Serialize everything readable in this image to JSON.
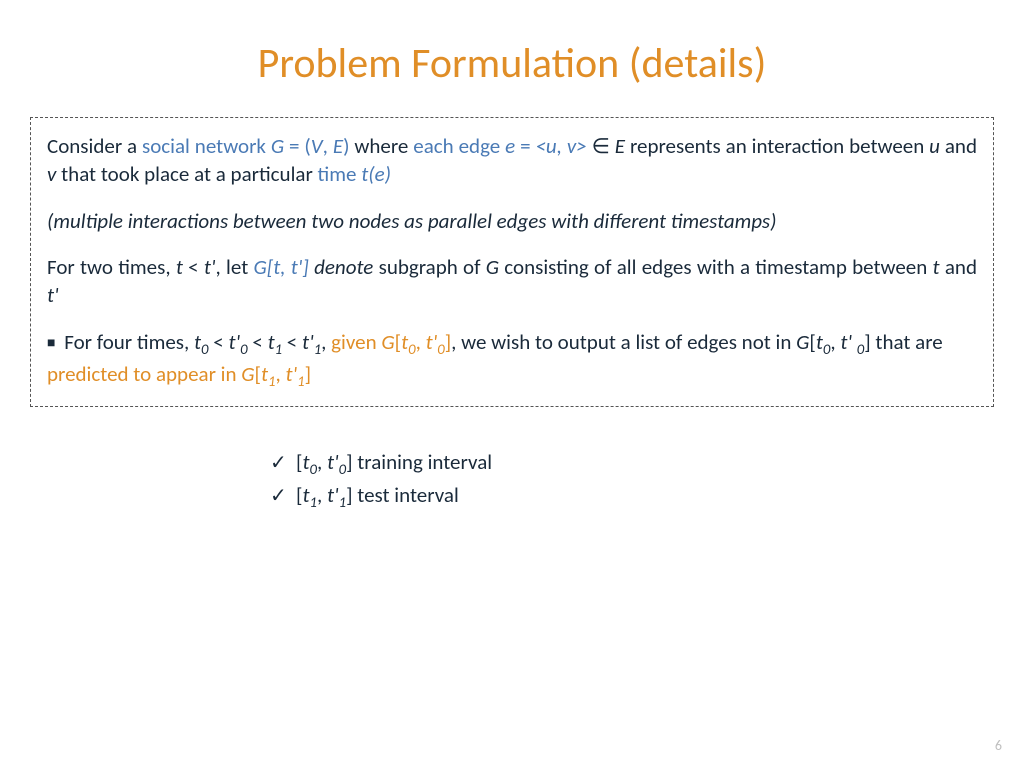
{
  "colors": {
    "title": "#e08e27",
    "accent_blue": "#4a7ab5",
    "accent_orange": "#e08e27",
    "body_text": "#1a2a3a",
    "pagenum": "#bfbfbf",
    "box_border": "#555555",
    "background": "#ffffff"
  },
  "title": "Problem Formulation (details)",
  "box": {
    "p1": {
      "t1": "Consider a ",
      "t2": "social network ",
      "t3": "G ",
      "t4": "= (",
      "t5": "V",
      "t6": ", ",
      "t7": "E",
      "t8": ")",
      "t9": "  where ",
      "t10": "each edge ",
      "t11": "e ",
      "t12": "= ",
      "t13": "<u, v>",
      "t14": "  ∈ ",
      "t15": "E",
      "t16": " represents an interaction between ",
      "t17": "u",
      "t18": " and ",
      "t19": "v",
      "t20": " that took place at a particular ",
      "t21": "time ",
      "t22": "t(e)"
    },
    "p2": "(multiple interactions between two nodes as parallel edges with different timestamps)",
    "p3": {
      "t1": "For two times, ",
      "t2": "t",
      "t3": " < ",
      "t4": "t'",
      "t5": ", let ",
      "t6": "G[t, t'] ",
      "t7": "denote",
      "t8": "  subgraph of ",
      "t9": "G",
      "t10": " consisting of all edges with a timestamp between ",
      "t11": "t",
      "t12": " and ",
      "t13": "t'"
    },
    "p4": {
      "bullet": "■",
      "t1": " For four times, ",
      "t2": "t",
      "s2": "0",
      "t3": " < ",
      "t4": "t'",
      "s4": "0",
      "t5": " < ",
      "t6": "t",
      "s6": "1",
      "t7": " < ",
      "t8": "t'",
      "s8": "1",
      "t9": ", ",
      "t10": "given ",
      "t11": "G",
      "t12": "[",
      "t13": "t",
      "s13": "0",
      "t14": ", ",
      "t15": "t'",
      "s15": "0",
      "t16": "]",
      "t17": ", we wish to output a list of edges not in ",
      "t18": "G",
      "t19": "[",
      "t20": "t",
      "s20": "0",
      "t21": ", ",
      "t22": "t' ",
      "s22": "0",
      "t23": "] that are ",
      "t24": "predicted to appear in ",
      "t25": "G",
      "t26": "[",
      "t27": "t",
      "s27": "1",
      "t28": ", ",
      "t29": "t'",
      "s29": "1",
      "t30": "]"
    }
  },
  "check": {
    "mark": "✓",
    "r1": {
      "a": "[",
      "b": "t",
      "sb": "0",
      "c": ", ",
      "d": "t'",
      "sd": "0",
      "e": "] training interval"
    },
    "r2": {
      "a": "[",
      "b": "t",
      "sb": "1",
      "c": ", ",
      "d": "t'",
      "sd": "1",
      "e": "] test interval"
    }
  },
  "pagenum": "6"
}
